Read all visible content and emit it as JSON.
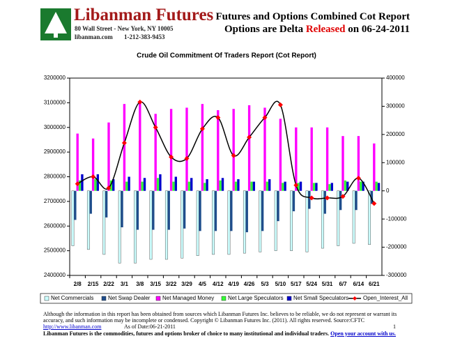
{
  "header": {
    "company": "Libanman Futures",
    "address": "80 Wall Street - New York, NY 10005",
    "web": "libanman.com",
    "phone": "1-212-383-9453",
    "report_title": "Futures and Options Combined Cot Report",
    "report_subtitle": [
      "Options are Delta ",
      "Released",
      " on 06-24-2011"
    ]
  },
  "chart_data": {
    "type": "bar",
    "title": "Crude Oil Commitment Of Traders Report (Cot Report)",
    "categories": [
      "2/8",
      "2/15",
      "2/22",
      "3/1",
      "3/8",
      "3/15",
      "3/22",
      "3/29",
      "4/5",
      "4/12",
      "4/19",
      "4/26",
      "5/3",
      "5/10",
      "5/17",
      "5/24",
      "5/31",
      "6/7",
      "6/14",
      "6/21"
    ],
    "series": [
      {
        "name": "Net Commercials",
        "color": "#ccffff",
        "values": [
          2520000,
          2505000,
          2485000,
          2450000,
          2450000,
          2465000,
          2465000,
          2470000,
          2480000,
          2485000,
          2485000,
          2490000,
          2495000,
          2500000,
          2500000,
          2495000,
          2510000,
          2520000,
          2530000,
          2525000
        ]
      },
      {
        "name": "Net Swap Dealer",
        "color": "#1f4e8c",
        "values": [
          2625000,
          2650000,
          2635000,
          2595000,
          2585000,
          2585000,
          2585000,
          2590000,
          2580000,
          2580000,
          2580000,
          2575000,
          2580000,
          2620000,
          2660000,
          2670000,
          2650000,
          2665000,
          2665000,
          2690000
        ]
      },
      {
        "name": "Net Managed Money",
        "color": "#ff00ff",
        "values": [
          2975000,
          2955000,
          3020000,
          3095000,
          3100000,
          3055000,
          3075000,
          3080000,
          3095000,
          3070000,
          3075000,
          3090000,
          3080000,
          3035000,
          3000000,
          3000000,
          3000000,
          2965000,
          2965000,
          2935000
        ]
      },
      {
        "name": "Net Large Speculators",
        "color": "#33ff33",
        "values": [
          2785000,
          2790000,
          2785000,
          2780000,
          2780000,
          2795000,
          2780000,
          2780000,
          2775000,
          2785000,
          2780000,
          2780000,
          2780000,
          2775000,
          2775000,
          2775000,
          2770000,
          2785000,
          2780000,
          2780000
        ]
      },
      {
        "name": "Net Small Speculators",
        "color": "#0000cc",
        "values": [
          2810000,
          2810000,
          2790000,
          2800000,
          2795000,
          2810000,
          2800000,
          2795000,
          2790000,
          2795000,
          2790000,
          2780000,
          2790000,
          2780000,
          2780000,
          2775000,
          2775000,
          2780000,
          2780000,
          2775000
        ]
      },
      {
        "name": "Open_Interest_All",
        "type": "line",
        "axis": "y2",
        "color": "#000000",
        "marker_color": "#ff0000",
        "values": [
          25000,
          50000,
          10000,
          170000,
          315000,
          225000,
          120000,
          115000,
          220000,
          260000,
          125000,
          190000,
          260000,
          305000,
          20000,
          -25000,
          -25000,
          -20000,
          45000,
          -45000
        ]
      }
    ],
    "ylim": [
      2400000,
      3200000
    ],
    "yticks": [
      2400000,
      2500000,
      2600000,
      2700000,
      2800000,
      2900000,
      3000000,
      3100000,
      3200000
    ],
    "y2lim": [
      -300000,
      400000
    ],
    "y2ticks": [
      -300000,
      -200000,
      -100000,
      0,
      100000,
      200000,
      300000,
      400000
    ],
    "grid": false,
    "legend": "bottom"
  },
  "footer": {
    "disclaimer": "Although the information in this report has been obtained from sources which Libanman Futures Inc. believes to be reliable, we do not represent or warrant its accuracy, and such information may be incomplete or condensed. Copyright © Libanman Futures Inc. (2011). All rights reserved.  Source:CFTC",
    "url": "http://www.libanman.com",
    "as_of": "As of Date:06-21-2011",
    "page": "1",
    "tagline": "Libanman Futures is the commodities, futures and options broker of choice to many institutional and individual traders.",
    "cta": "Open your account with us."
  }
}
